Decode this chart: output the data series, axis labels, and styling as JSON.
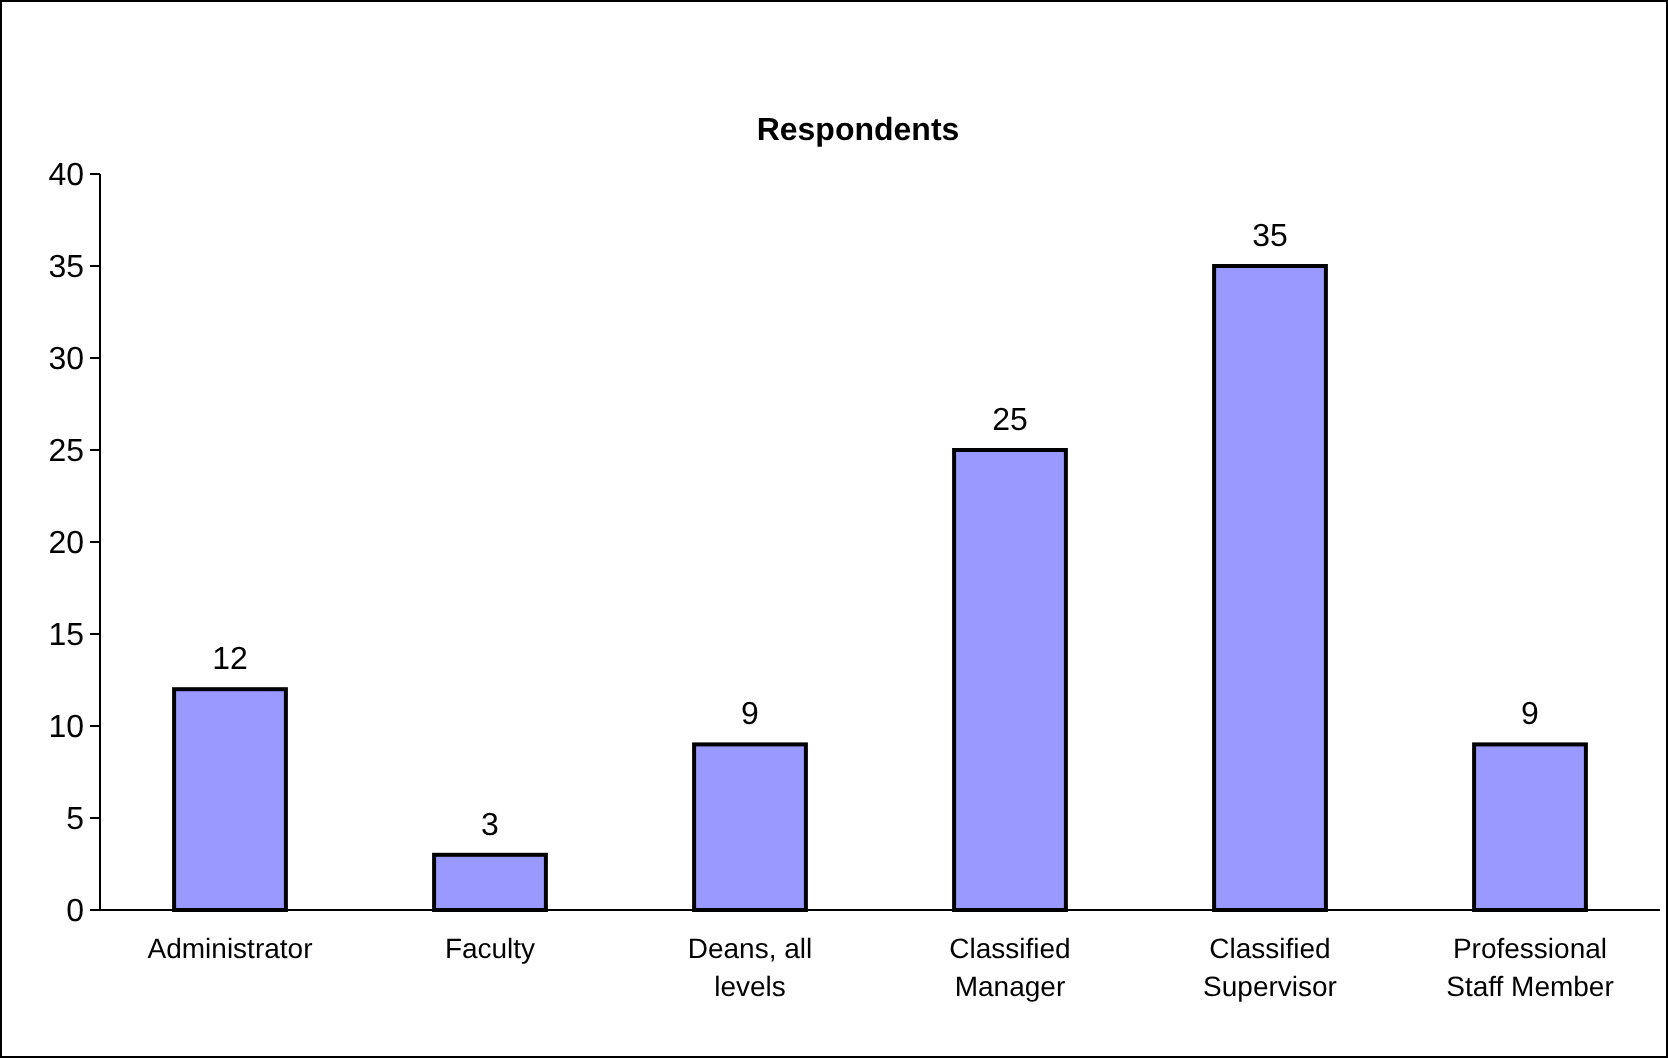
{
  "chart_data": {
    "type": "bar",
    "title": "Respondents",
    "categories": [
      "Administrator",
      "Faculty",
      "Deans, all levels",
      "Classified Manager",
      "Classified Supervisor",
      "Professional Staff Member"
    ],
    "values": [
      12,
      3,
      9,
      25,
      35,
      9
    ],
    "color": "#9999ff",
    "ylim": [
      0,
      40
    ],
    "yticks": [
      0,
      5,
      10,
      15,
      20,
      25,
      30,
      35,
      40
    ],
    "grid": false,
    "data_labels": true
  }
}
